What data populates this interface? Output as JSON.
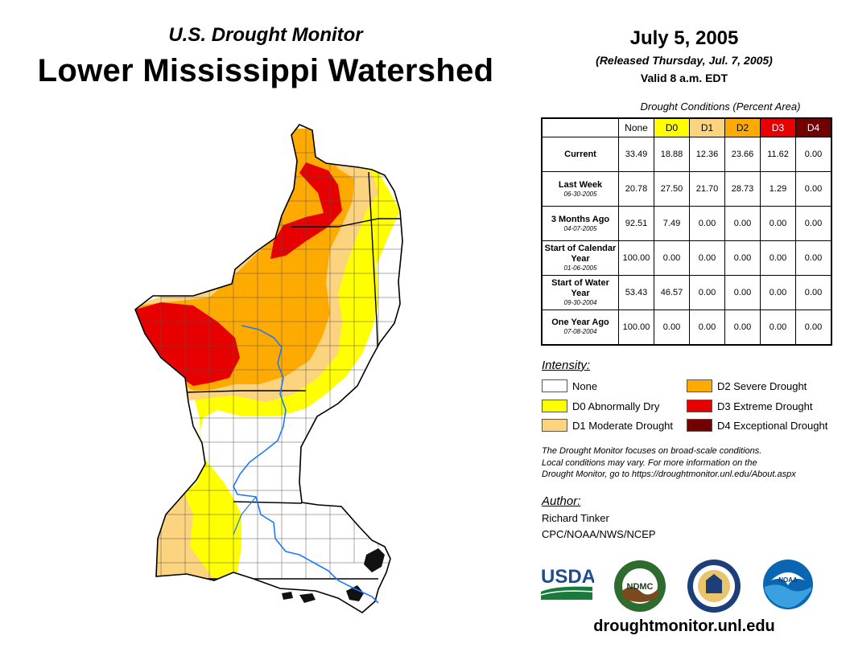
{
  "header": {
    "subtitle": "U.S. Drought Monitor",
    "title": "Lower Mississippi Watershed",
    "date": "July 5, 2005",
    "released": "(Released Thursday, Jul. 7, 2005)",
    "valid": "Valid 8 a.m. EDT"
  },
  "table": {
    "caption": "Drought Conditions (Percent Area)",
    "columns": [
      "None",
      "D0",
      "D1",
      "D2",
      "D3",
      "D4"
    ],
    "column_colors": [
      "#ffffff",
      "#ffff00",
      "#fcd37f",
      "#ffaa00",
      "#e60000",
      "#730000"
    ],
    "rows": [
      {
        "label": "Current",
        "sublabel": "",
        "values": [
          "33.49",
          "18.88",
          "12.36",
          "23.66",
          "11.62",
          "0.00"
        ]
      },
      {
        "label": "Last Week",
        "sublabel": "06-30-2005",
        "values": [
          "20.78",
          "27.50",
          "21.70",
          "28.73",
          "1.29",
          "0.00"
        ]
      },
      {
        "label": "3 Months Ago",
        "sublabel": "04-07-2005",
        "values": [
          "92.51",
          "7.49",
          "0.00",
          "0.00",
          "0.00",
          "0.00"
        ]
      },
      {
        "label": "Start of Calendar Year",
        "sublabel": "01-06-2005",
        "values": [
          "100.00",
          "0.00",
          "0.00",
          "0.00",
          "0.00",
          "0.00"
        ]
      },
      {
        "label": "Start of Water Year",
        "sublabel": "09-30-2004",
        "values": [
          "53.43",
          "46.57",
          "0.00",
          "0.00",
          "0.00",
          "0.00"
        ]
      },
      {
        "label": "One Year Ago",
        "sublabel": "07-08-2004",
        "values": [
          "100.00",
          "0.00",
          "0.00",
          "0.00",
          "0.00",
          "0.00"
        ]
      }
    ]
  },
  "legend": {
    "title": "Intensity:",
    "items": [
      {
        "label": "None",
        "color": "#ffffff"
      },
      {
        "label": "D0 Abnormally Dry",
        "color": "#ffff00"
      },
      {
        "label": "D1 Moderate Drought",
        "color": "#fcd37f"
      },
      {
        "label": "D2 Severe Drought",
        "color": "#ffaa00"
      },
      {
        "label": "D3 Extreme Drought",
        "color": "#e60000"
      },
      {
        "label": "D4 Exceptional Drought",
        "color": "#730000"
      }
    ]
  },
  "note": {
    "line1": "The Drought Monitor focuses on broad-scale conditions.",
    "line2": "Local conditions may vary. For more information on the",
    "line3": "Drought Monitor, go to https://droughtmonitor.unl.edu/About.aspx"
  },
  "author": {
    "title": "Author:",
    "name": "Richard Tinker",
    "org": "CPC/NOAA/NWS/NCEP"
  },
  "logos": {
    "usda": "USDA",
    "ndmc": "NDMC",
    "noaa": "NOAA",
    "usda_icon": "usda-logo-icon",
    "ndmc_icon": "ndmc-seal-icon",
    "doc_icon": "commerce-seal-icon",
    "noaa_icon": "noaa-logo-icon"
  },
  "footer": {
    "website": "droughtmonitor.unl.edu"
  },
  "map": {
    "colors": {
      "none": "#ffffff",
      "d0": "#ffff00",
      "d1": "#fcd37f",
      "d2": "#ffaa00",
      "d3": "#e60000",
      "river": "#1e78ff"
    }
  }
}
